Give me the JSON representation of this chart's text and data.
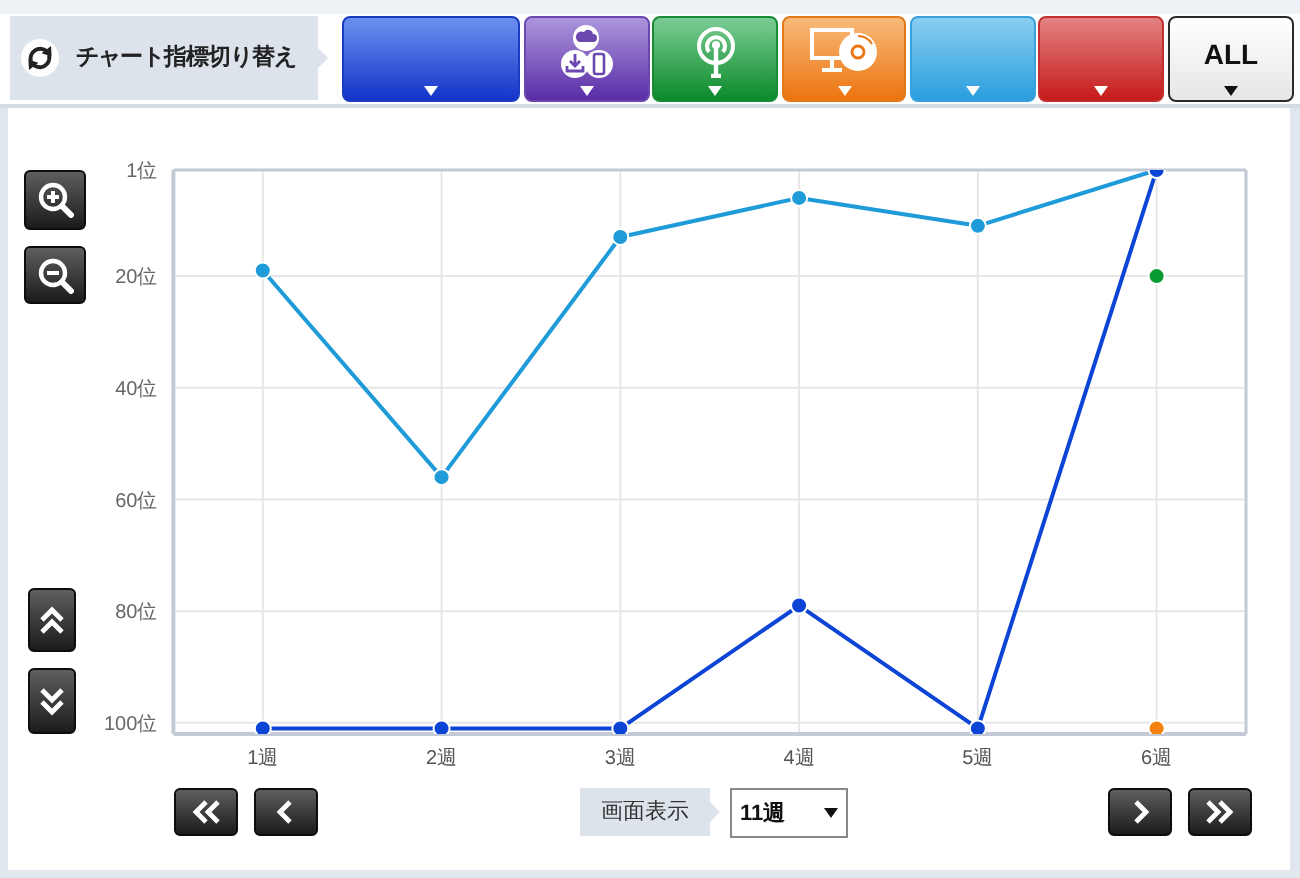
{
  "chart_data": {
    "type": "line",
    "categories": [
      "1週",
      "2週",
      "3週",
      "4週",
      "5週",
      "6週"
    ],
    "series": [
      {
        "color": "#1e9bd8",
        "values": [
          19,
          56,
          13,
          6,
          11,
          1
        ]
      },
      {
        "color": "#0c44d6",
        "values": [
          101,
          101,
          101,
          79,
          101,
          1
        ]
      },
      {
        "type": "scatter",
        "color": "#0a9a32",
        "values": [
          null,
          null,
          null,
          null,
          null,
          20
        ]
      },
      {
        "type": "scatter",
        "color": "#f5820f",
        "values": [
          null,
          null,
          null,
          null,
          null,
          101
        ]
      }
    ],
    "ylim": [
      102,
      1
    ],
    "yticks": [
      {
        "value": 1,
        "label": "1位"
      },
      {
        "value": 20,
        "label": "20位"
      },
      {
        "value": 40,
        "label": "40位"
      },
      {
        "value": 60,
        "label": "60位"
      },
      {
        "value": 80,
        "label": "80位"
      },
      {
        "value": 100,
        "label": "100位"
      }
    ],
    "grid": true,
    "marker": "circle",
    "line_style": "solid",
    "annotations": [
      "チャート指標切り替え",
      "ALL",
      "画面表示",
      "11週"
    ]
  }
}
